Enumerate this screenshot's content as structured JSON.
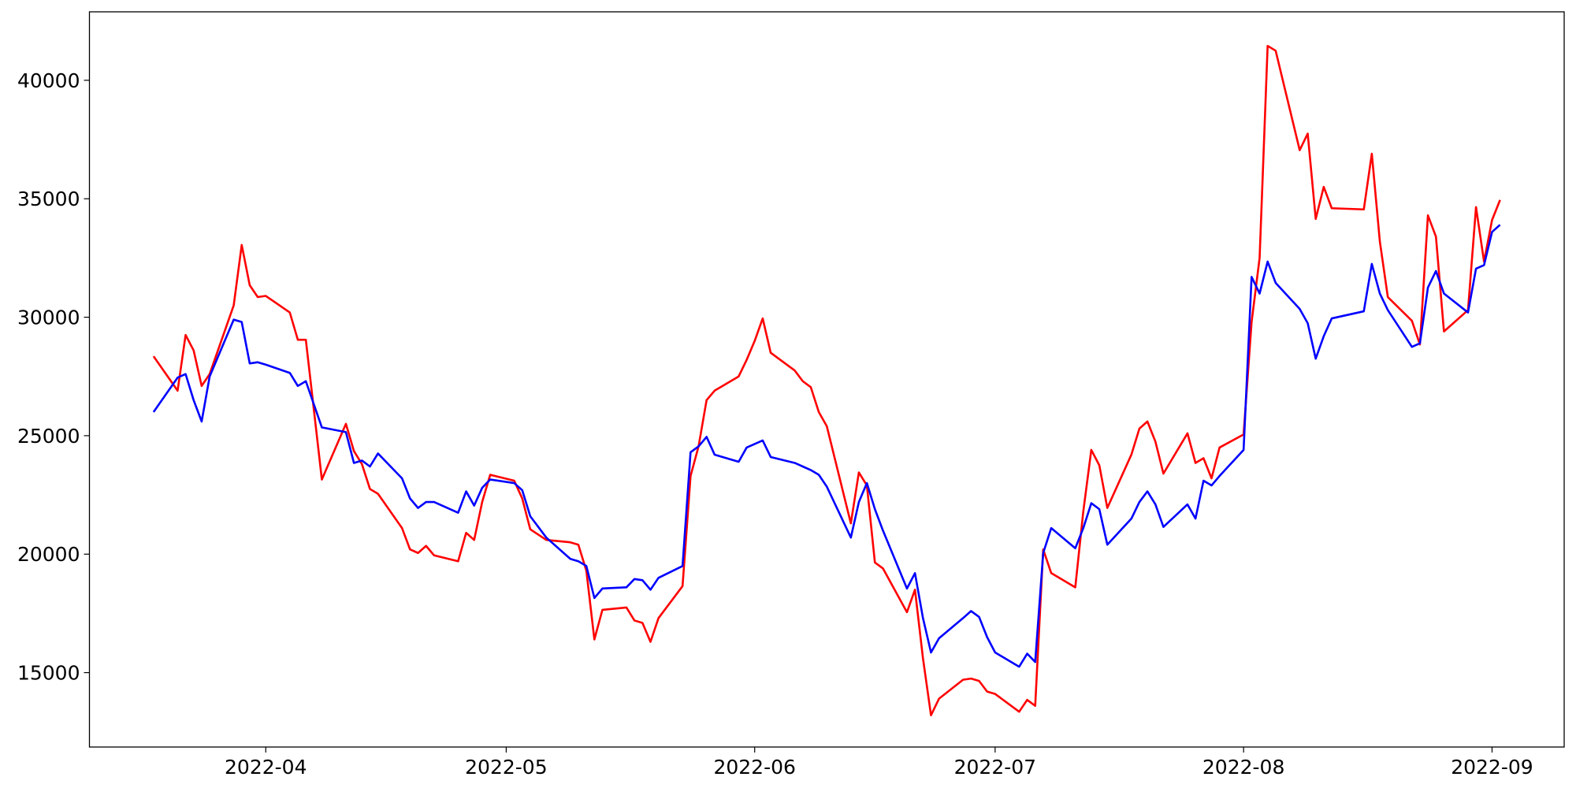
{
  "chart_data": {
    "type": "line",
    "x": [
      "2022-03-18",
      "2022-03-21",
      "2022-03-22",
      "2022-03-23",
      "2022-03-24",
      "2022-03-25",
      "2022-03-28",
      "2022-03-29",
      "2022-03-30",
      "2022-03-31",
      "2022-04-01",
      "2022-04-04",
      "2022-04-05",
      "2022-04-06",
      "2022-04-08",
      "2022-04-11",
      "2022-04-12",
      "2022-04-13",
      "2022-04-14",
      "2022-04-15",
      "2022-04-18",
      "2022-04-19",
      "2022-04-20",
      "2022-04-21",
      "2022-04-22",
      "2022-04-25",
      "2022-04-26",
      "2022-04-27",
      "2022-04-28",
      "2022-04-29",
      "2022-05-02",
      "2022-05-03",
      "2022-05-04",
      "2022-05-06",
      "2022-05-09",
      "2022-05-10",
      "2022-05-11",
      "2022-05-12",
      "2022-05-13",
      "2022-05-16",
      "2022-05-17",
      "2022-05-18",
      "2022-05-19",
      "2022-05-20",
      "2022-05-23",
      "2022-05-24",
      "2022-05-25",
      "2022-05-26",
      "2022-05-27",
      "2022-05-30",
      "2022-05-31",
      "2022-06-01",
      "2022-06-02",
      "2022-06-03",
      "2022-06-06",
      "2022-06-07",
      "2022-06-08",
      "2022-06-09",
      "2022-06-10",
      "2022-06-13",
      "2022-06-14",
      "2022-06-15",
      "2022-06-16",
      "2022-06-17",
      "2022-06-20",
      "2022-06-21",
      "2022-06-22",
      "2022-06-23",
      "2022-06-24",
      "2022-06-27",
      "2022-06-28",
      "2022-06-29",
      "2022-06-30",
      "2022-07-01",
      "2022-07-04",
      "2022-07-05",
      "2022-07-06",
      "2022-07-07",
      "2022-07-08",
      "2022-07-11",
      "2022-07-12",
      "2022-07-13",
      "2022-07-14",
      "2022-07-15",
      "2022-07-18",
      "2022-07-19",
      "2022-07-20",
      "2022-07-21",
      "2022-07-22",
      "2022-07-25",
      "2022-07-26",
      "2022-07-27",
      "2022-07-28",
      "2022-07-29",
      "2022-08-01",
      "2022-08-02",
      "2022-08-03",
      "2022-08-04",
      "2022-08-05",
      "2022-08-08",
      "2022-08-09",
      "2022-08-10",
      "2022-08-11",
      "2022-08-12",
      "2022-08-16",
      "2022-08-17",
      "2022-08-18",
      "2022-08-19",
      "2022-08-22",
      "2022-08-23",
      "2022-08-24",
      "2022-08-25",
      "2022-08-26",
      "2022-08-29",
      "2022-08-30",
      "2022-08-31",
      "2022-09-01",
      "2022-09-02"
    ],
    "series": [
      {
        "color": "#ff0000",
        "values": [
          28350,
          26900,
          29250,
          28600,
          27100,
          27600,
          30500,
          33050,
          31350,
          30850,
          30900,
          30200,
          29050,
          29050,
          23150,
          25500,
          24350,
          23800,
          22750,
          22550,
          21100,
          20200,
          20050,
          20350,
          19950,
          19700,
          20900,
          20600,
          22200,
          23350,
          23100,
          22350,
          21050,
          20600,
          20500,
          20400,
          19300,
          16400,
          17650,
          17750,
          17200,
          17100,
          16300,
          17300,
          18650,
          23300,
          24550,
          26500,
          26900,
          27500,
          28200,
          29000,
          29950,
          28500,
          27750,
          27300,
          27050,
          26000,
          25400,
          21300,
          23450,
          22900,
          19650,
          19400,
          17550,
          18500,
          15600,
          13200,
          13900,
          14700,
          14750,
          14650,
          14200,
          14100,
          13350,
          13850,
          13600,
          20200,
          19200,
          18600,
          21800,
          24400,
          23750,
          21950,
          24200,
          25300,
          25600,
          24750,
          23400,
          25100,
          23850,
          24050,
          23200,
          24500,
          25050,
          29800,
          32500,
          41450,
          41250,
          37050,
          37750,
          34150,
          35500,
          34600,
          34550,
          36900,
          33200,
          30850,
          29850,
          28850,
          34300,
          33400,
          29400,
          30300,
          34650,
          32350,
          34100,
          34950
        ]
      },
      {
        "color": "#0000ff",
        "values": [
          26000,
          27450,
          27600,
          26500,
          25600,
          27500,
          29900,
          29800,
          28050,
          28100,
          28000,
          27650,
          27100,
          27300,
          25350,
          25150,
          23850,
          23950,
          23700,
          24250,
          23200,
          22350,
          21950,
          22200,
          22200,
          21750,
          22650,
          22050,
          22800,
          23150,
          23000,
          22700,
          21600,
          20700,
          19800,
          19700,
          19500,
          18150,
          18550,
          18600,
          18950,
          18900,
          18500,
          19000,
          19500,
          24300,
          24550,
          24950,
          24200,
          23900,
          24500,
          24650,
          24800,
          24100,
          23850,
          23700,
          23550,
          23350,
          22850,
          20700,
          22200,
          23000,
          21900,
          21000,
          18550,
          19200,
          17300,
          15850,
          16450,
          17300,
          17600,
          17350,
          16500,
          15850,
          15250,
          15800,
          15450,
          20050,
          21100,
          20250,
          21100,
          22150,
          21900,
          20400,
          21500,
          22200,
          22650,
          22100,
          21150,
          22100,
          21500,
          23100,
          22900,
          23300,
          24400,
          31700,
          31000,
          32350,
          31450,
          30350,
          29750,
          28250,
          29200,
          29950,
          30250,
          32250,
          31000,
          30300,
          28750,
          28900,
          31250,
          31950,
          31000,
          30200,
          32050,
          32200,
          33600,
          33900
        ]
      }
    ],
    "xlim": [
      "2022-03-10",
      "2022-09-10"
    ],
    "xticks": [
      {
        "value": "2022-04-01",
        "label": "2022-04"
      },
      {
        "value": "2022-05-01",
        "label": "2022-05"
      },
      {
        "value": "2022-06-01",
        "label": "2022-06"
      },
      {
        "value": "2022-07-01",
        "label": "2022-07"
      },
      {
        "value": "2022-08-01",
        "label": "2022-08"
      },
      {
        "value": "2022-09-01",
        "label": "2022-09"
      }
    ],
    "ylim": [
      11860,
      42890
    ],
    "yticks": [
      15000,
      20000,
      25000,
      30000,
      35000,
      40000
    ],
    "grid": false
  }
}
